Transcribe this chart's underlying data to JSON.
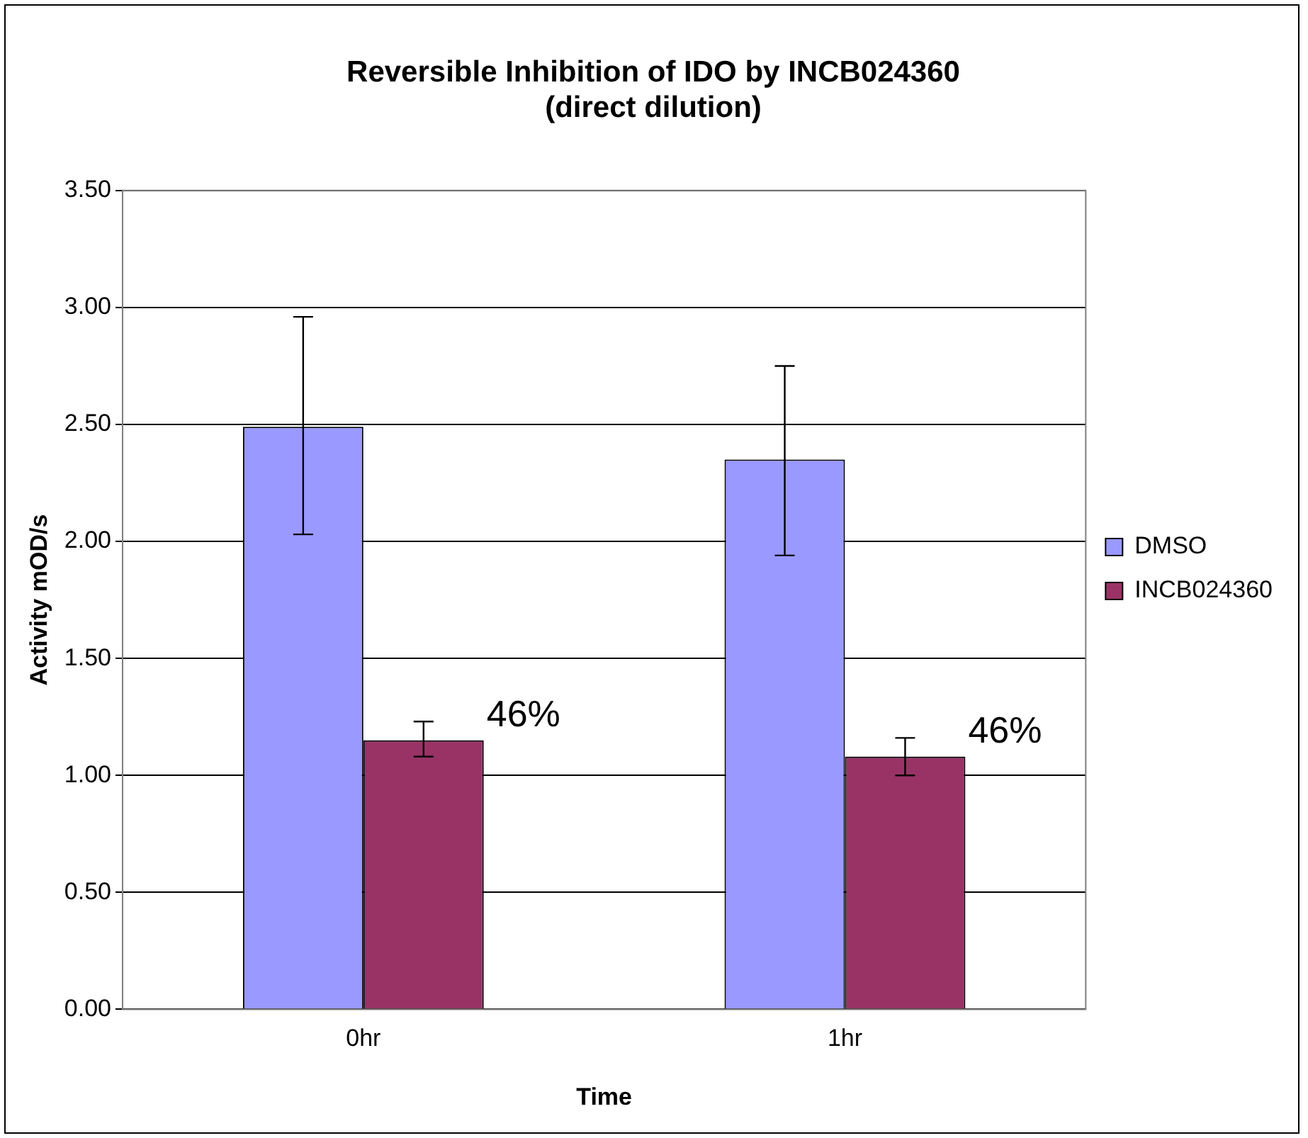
{
  "chart_data": {
    "type": "bar",
    "title": [
      "Reversible Inhibition of IDO by INCB024360",
      "(direct dilution)"
    ],
    "xlabel": "Time",
    "ylabel": "Activity mOD/s",
    "categories": [
      "0hr",
      "1hr"
    ],
    "series": [
      {
        "name": "DMSO",
        "color": "#9999ff",
        "values": [
          2.49,
          2.35
        ],
        "errors": [
          [
            2.03,
            2.96
          ],
          [
            1.94,
            2.75
          ]
        ]
      },
      {
        "name": "INCB024360",
        "color": "#993366",
        "values": [
          1.15,
          1.08
        ],
        "errors": [
          [
            1.08,
            1.23
          ],
          [
            1.0,
            1.16
          ]
        ]
      }
    ],
    "ylim": [
      0,
      3.5
    ],
    "yticks": [
      {
        "value": 0,
        "label": "0.00"
      },
      {
        "value": 0.5,
        "label": "0.50"
      },
      {
        "value": 1,
        "label": "1.00"
      },
      {
        "value": 1.5,
        "label": "1.50"
      },
      {
        "value": 2,
        "label": "2.00"
      },
      {
        "value": 2.5,
        "label": "2.50"
      },
      {
        "value": 3,
        "label": "3.00"
      },
      {
        "value": 3.5,
        "label": "3.50"
      }
    ],
    "annotations": [
      "46%",
      "46%"
    ],
    "grid": "y",
    "legend": "right"
  }
}
